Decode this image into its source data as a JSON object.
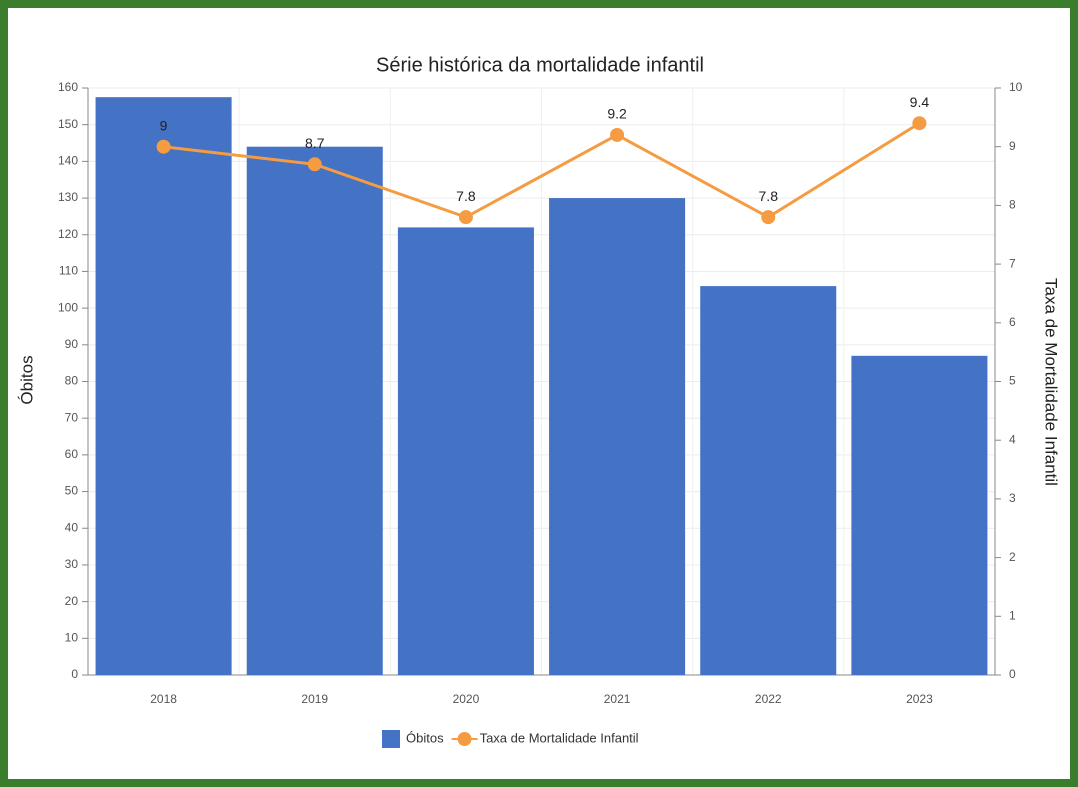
{
  "chart_data": {
    "type": "bar",
    "title": "Série histórica da mortalidade infantil",
    "ylabel": "Óbitos",
    "y2label": "Taxa de Mortalidade Infantil",
    "categories": [
      "2018",
      "2019",
      "2020",
      "2021",
      "2022",
      "2023"
    ],
    "series": [
      {
        "name": "Óbitos",
        "type": "bar",
        "color": "#4472c4",
        "values": [
          157.5,
          144,
          122,
          130,
          106,
          87
        ]
      },
      {
        "name": "Taxa de Mortalidade Infantil",
        "type": "line",
        "axis": "y2",
        "color": "#f59b42",
        "values": [
          9,
          8.7,
          7.8,
          9.2,
          7.8,
          9.4
        ]
      }
    ],
    "ylim": [
      0,
      160
    ],
    "yticks": [
      0,
      10,
      20,
      30,
      40,
      50,
      60,
      70,
      80,
      90,
      100,
      110,
      120,
      130,
      140,
      150,
      160
    ],
    "y2lim": [
      0,
      10
    ],
    "y2ticks": [
      0,
      1,
      2,
      3,
      4,
      5,
      6,
      7,
      8,
      9,
      10
    ],
    "grid": true,
    "legend": "bottom"
  }
}
